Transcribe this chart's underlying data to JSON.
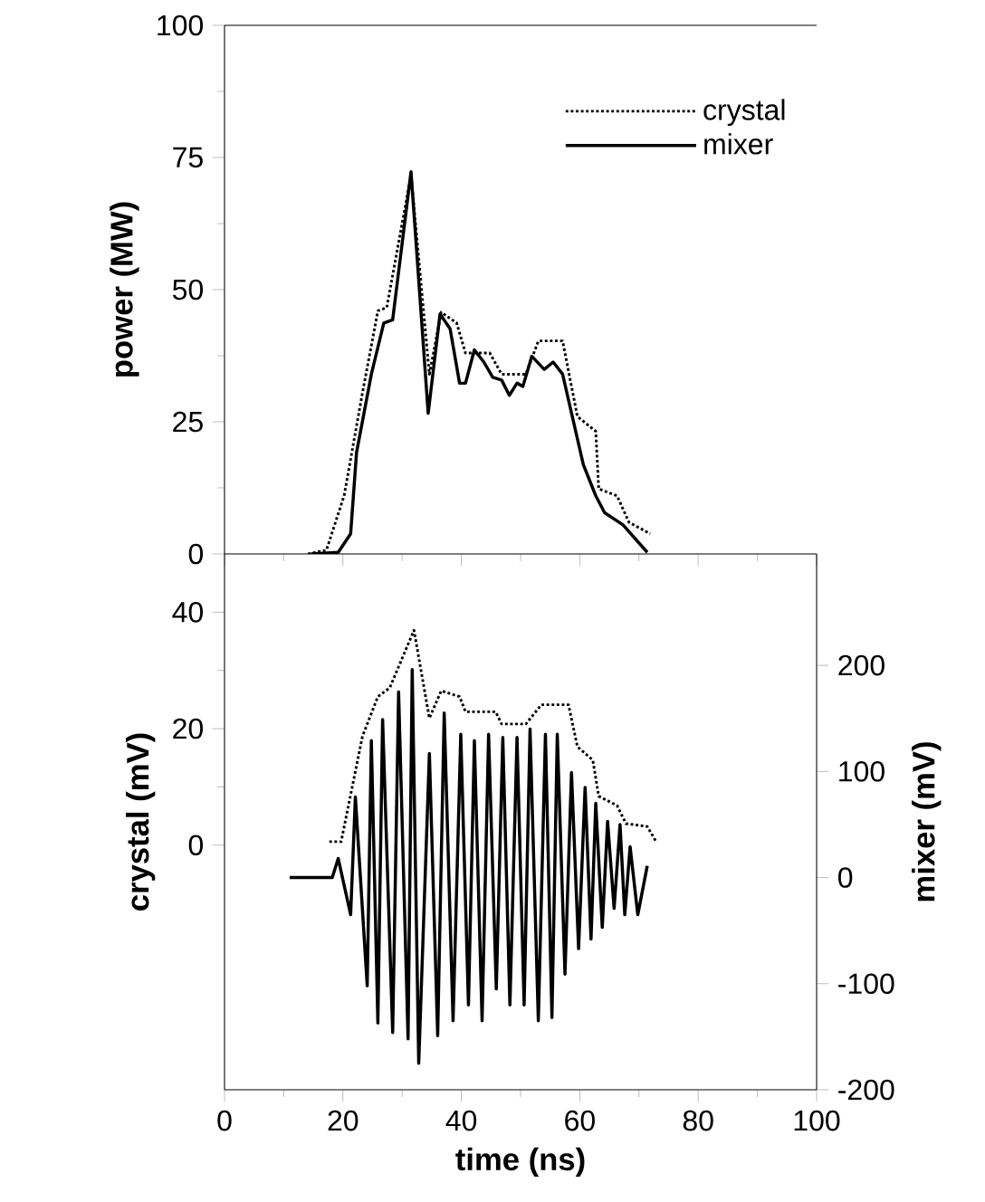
{
  "chart_data": [
    {
      "type": "line",
      "ylabel": "power (MW)",
      "xlim": [
        0,
        100
      ],
      "ylim": [
        0,
        100
      ],
      "xticks": [
        0,
        20,
        40,
        60,
        80,
        100,
        {
          "value": 10,
          "label": null
        },
        {
          "value": 30,
          "label": null
        },
        {
          "value": 50,
          "label": null
        },
        {
          "value": 70,
          "label": null
        },
        {
          "value": 90,
          "label": null
        }
      ],
      "yticks": [
        0,
        25,
        50,
        75,
        100,
        {
          "value": 12.5,
          "label": null
        },
        {
          "value": 37.5,
          "label": null
        },
        {
          "value": 62.5,
          "label": null
        },
        {
          "value": 87.5,
          "label": null
        }
      ],
      "tick_labels": "y",
      "legend": "top right",
      "series": [
        {
          "name": "crystal",
          "color": "#000000",
          "line_style": "dotted",
          "x": [
            14.1,
            17.2,
            20.2,
            23.3,
            25.9,
            27.4,
            31.5,
            34.6,
            36.6,
            39.2,
            40.7,
            44.8,
            46.8,
            50.9,
            53,
            57.1,
            59.6,
            62.7,
            63.2,
            66.3,
            68.3,
            71.9
          ],
          "values": [
            0,
            0.7,
            11,
            30.5,
            46,
            46.6,
            71.7,
            34,
            45.7,
            43.7,
            38,
            38,
            34,
            34,
            40.3,
            40.3,
            26,
            23.2,
            12.3,
            11,
            6,
            3.8
          ]
        },
        {
          "name": "mixer",
          "color": "#000000",
          "line_style": "solid",
          "x": [
            14.6,
            19.2,
            21.3,
            22.3,
            24.8,
            26.9,
            28.4,
            31.5,
            34.4,
            36.4,
            38.1,
            39.7,
            40.7,
            42.2,
            43.8,
            45.3,
            46.8,
            48.1,
            49.4,
            50.4,
            51.9,
            54,
            55.5,
            57.1,
            60.6,
            62.7,
            64.2,
            67.3,
            71.4
          ],
          "values": [
            0,
            0.3,
            3.8,
            19.2,
            34,
            43.7,
            44.3,
            72.3,
            26.6,
            45.4,
            42.6,
            32.3,
            32.3,
            38.6,
            36.3,
            33.4,
            32.9,
            30,
            32.3,
            31.7,
            37.4,
            34.9,
            36.3,
            34,
            16.9,
            11,
            7.8,
            5.5,
            0.3
          ]
        }
      ]
    },
    {
      "type": "line",
      "xlabel": "time (ns)",
      "ylabel": "crystal (mV)",
      "y2label": "mixer (mV)",
      "xlim": [
        0,
        100
      ],
      "ylim": [
        -42,
        50
      ],
      "y2lim": [
        -200,
        305
      ],
      "xticks": [
        0,
        20,
        40,
        60,
        80,
        100,
        {
          "value": 10,
          "label": null
        },
        {
          "value": 30,
          "label": null
        },
        {
          "value": 50,
          "label": null
        },
        {
          "value": 70,
          "label": null
        },
        {
          "value": 90,
          "label": null
        }
      ],
      "yticks": [
        0,
        20,
        40,
        {
          "value": 10,
          "label": null
        },
        {
          "value": 30,
          "label": null
        }
      ],
      "y2ticks": [
        -200,
        -100,
        0,
        100,
        200
      ],
      "series": [
        {
          "color": "#000000",
          "line_style": "dotted",
          "x": [
            17.7,
            19.7,
            23.3,
            25.9,
            27.9,
            32,
            34.6,
            36.6,
            39.7,
            40.7,
            45.8,
            46.8,
            50.9,
            53.5,
            58.1,
            59.6,
            62.2,
            63.2,
            66.3,
            67.8,
            71.4,
            72.9
          ],
          "values": [
            0.6,
            0.6,
            18.7,
            25.5,
            27,
            36.9,
            21.8,
            26.5,
            25.5,
            22.9,
            22.9,
            20.8,
            20.8,
            24.1,
            24.1,
            16.9,
            14.6,
            8.4,
            6.8,
            3.7,
            3.2,
            0.6
          ]
        },
        {
          "color": "#000000",
          "line_style": "solid",
          "axis": "y2",
          "x": [
            11,
            18.2,
            19.2,
            21.3,
            22.1,
            24.1,
            24.8,
            25.9,
            26.7,
            28.4,
            29.4,
            31,
            31.7,
            32.8,
            34.6,
            36,
            37.1,
            38.6,
            39.9,
            41.2,
            42.2,
            43.5,
            44.6,
            45.9,
            47,
            48.2,
            49.4,
            50.6,
            51.6,
            53,
            54.2,
            55.3,
            56.2,
            57.5,
            58.6,
            59.8,
            60.9,
            61.9,
            62.7,
            63.8,
            64.7,
            65.8,
            66.8,
            67.6,
            68.5,
            69.8,
            71.4
          ],
          "values": [
            0,
            0,
            18,
            -35,
            76,
            -102,
            129,
            -137,
            149,
            -146,
            175,
            -152,
            196,
            -175,
            117,
            -149,
            155,
            -135,
            135,
            -120,
            129,
            -135,
            135,
            -105,
            132,
            -120,
            132,
            -120,
            140,
            -135,
            135,
            -132,
            135,
            -91,
            99,
            -67,
            85,
            -58,
            70,
            -47,
            53,
            -29,
            50,
            -35,
            29,
            -35,
            11
          ]
        }
      ]
    }
  ]
}
